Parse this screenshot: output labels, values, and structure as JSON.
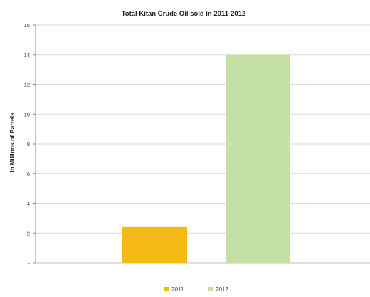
{
  "chart_data": {
    "type": "bar",
    "title": "Total Kitan Crude Oil sold in 2011-2012",
    "xlabel": "",
    "ylabel": "In Millions of Barrels",
    "ylim": [
      0,
      16
    ],
    "yticks": [
      0,
      2,
      4,
      6,
      8,
      10,
      12,
      14,
      16
    ],
    "ytick_labels": [
      "-",
      "2",
      "4",
      "6",
      "8",
      "10",
      "12",
      "14",
      "16"
    ],
    "grid": true,
    "legend_position": "bottom",
    "series": [
      {
        "name": "2011",
        "value": 2.4,
        "color": "#F5B915"
      },
      {
        "name": "2012",
        "value": 14,
        "color": "#C5E0A5"
      }
    ]
  }
}
